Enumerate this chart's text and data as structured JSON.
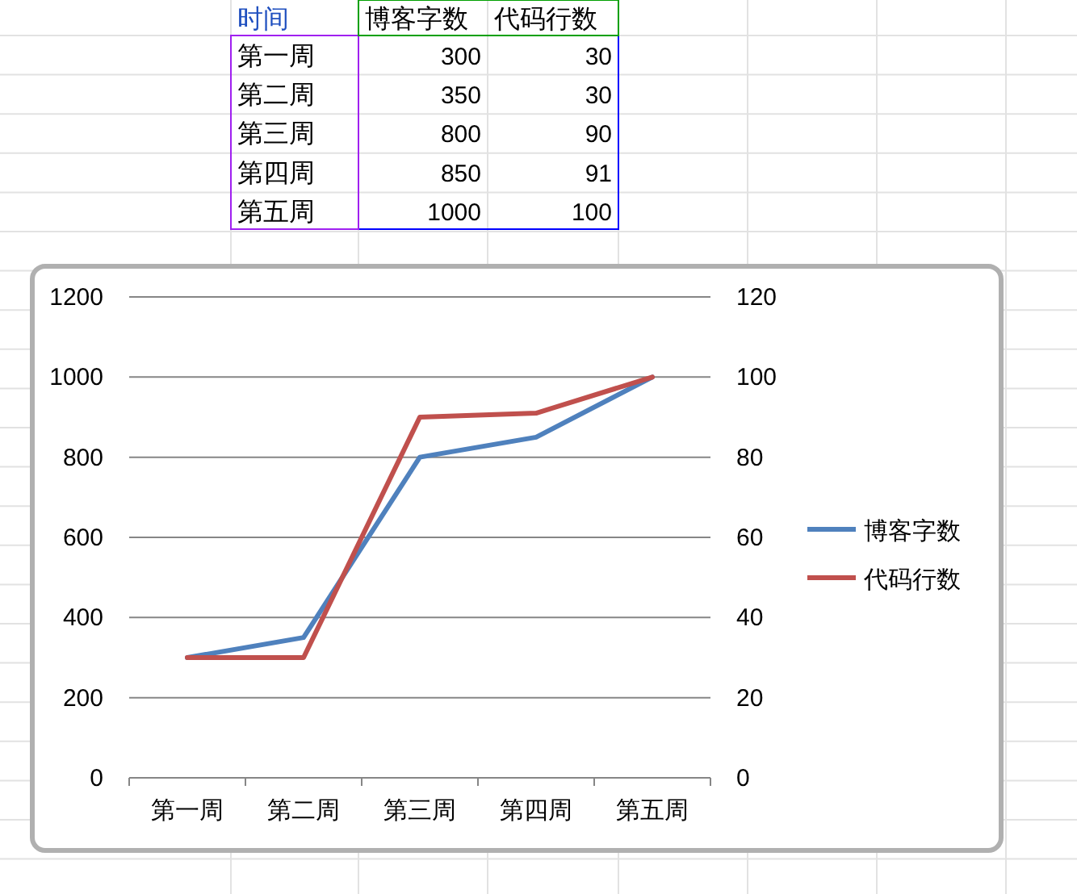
{
  "chart_data": [
    {
      "type": "other",
      "annotations": [
        "时间"
      ],
      "categories": [
        "第一周",
        "第二周",
        "第三周",
        "第四周",
        "第五周"
      ],
      "series": [
        {
          "name": "博客字数",
          "values": [
            300,
            350,
            800,
            850,
            1000
          ],
          "value_labels": [
            "300",
            "350",
            "800",
            "850",
            "1000"
          ]
        },
        {
          "name": "代码行数",
          "values": [
            30,
            30,
            90,
            91,
            100
          ],
          "value_labels": [
            "30",
            "30",
            "90",
            "91",
            "100"
          ]
        }
      ]
    },
    {
      "type": "line",
      "categories": [
        "第一周",
        "第二周",
        "第三周",
        "第四周",
        "第五周"
      ],
      "series": [
        {
          "name": "博客字数",
          "color": "#4f81bd",
          "values": [
            300,
            350,
            800,
            850,
            1000
          ]
        },
        {
          "name": "代码行数",
          "color": "#c0504d",
          "values": [
            30,
            30,
            90,
            91,
            100
          ],
          "axis": "y2"
        }
      ],
      "ylim": [
        0,
        1200
      ],
      "yticks": [
        0,
        200,
        400,
        600,
        800,
        1000,
        1200
      ],
      "y2lim": [
        0,
        120
      ],
      "y2ticks": [
        0,
        20,
        40,
        60,
        80,
        100,
        120
      ],
      "grid": "y",
      "legend": "right"
    }
  ]
}
